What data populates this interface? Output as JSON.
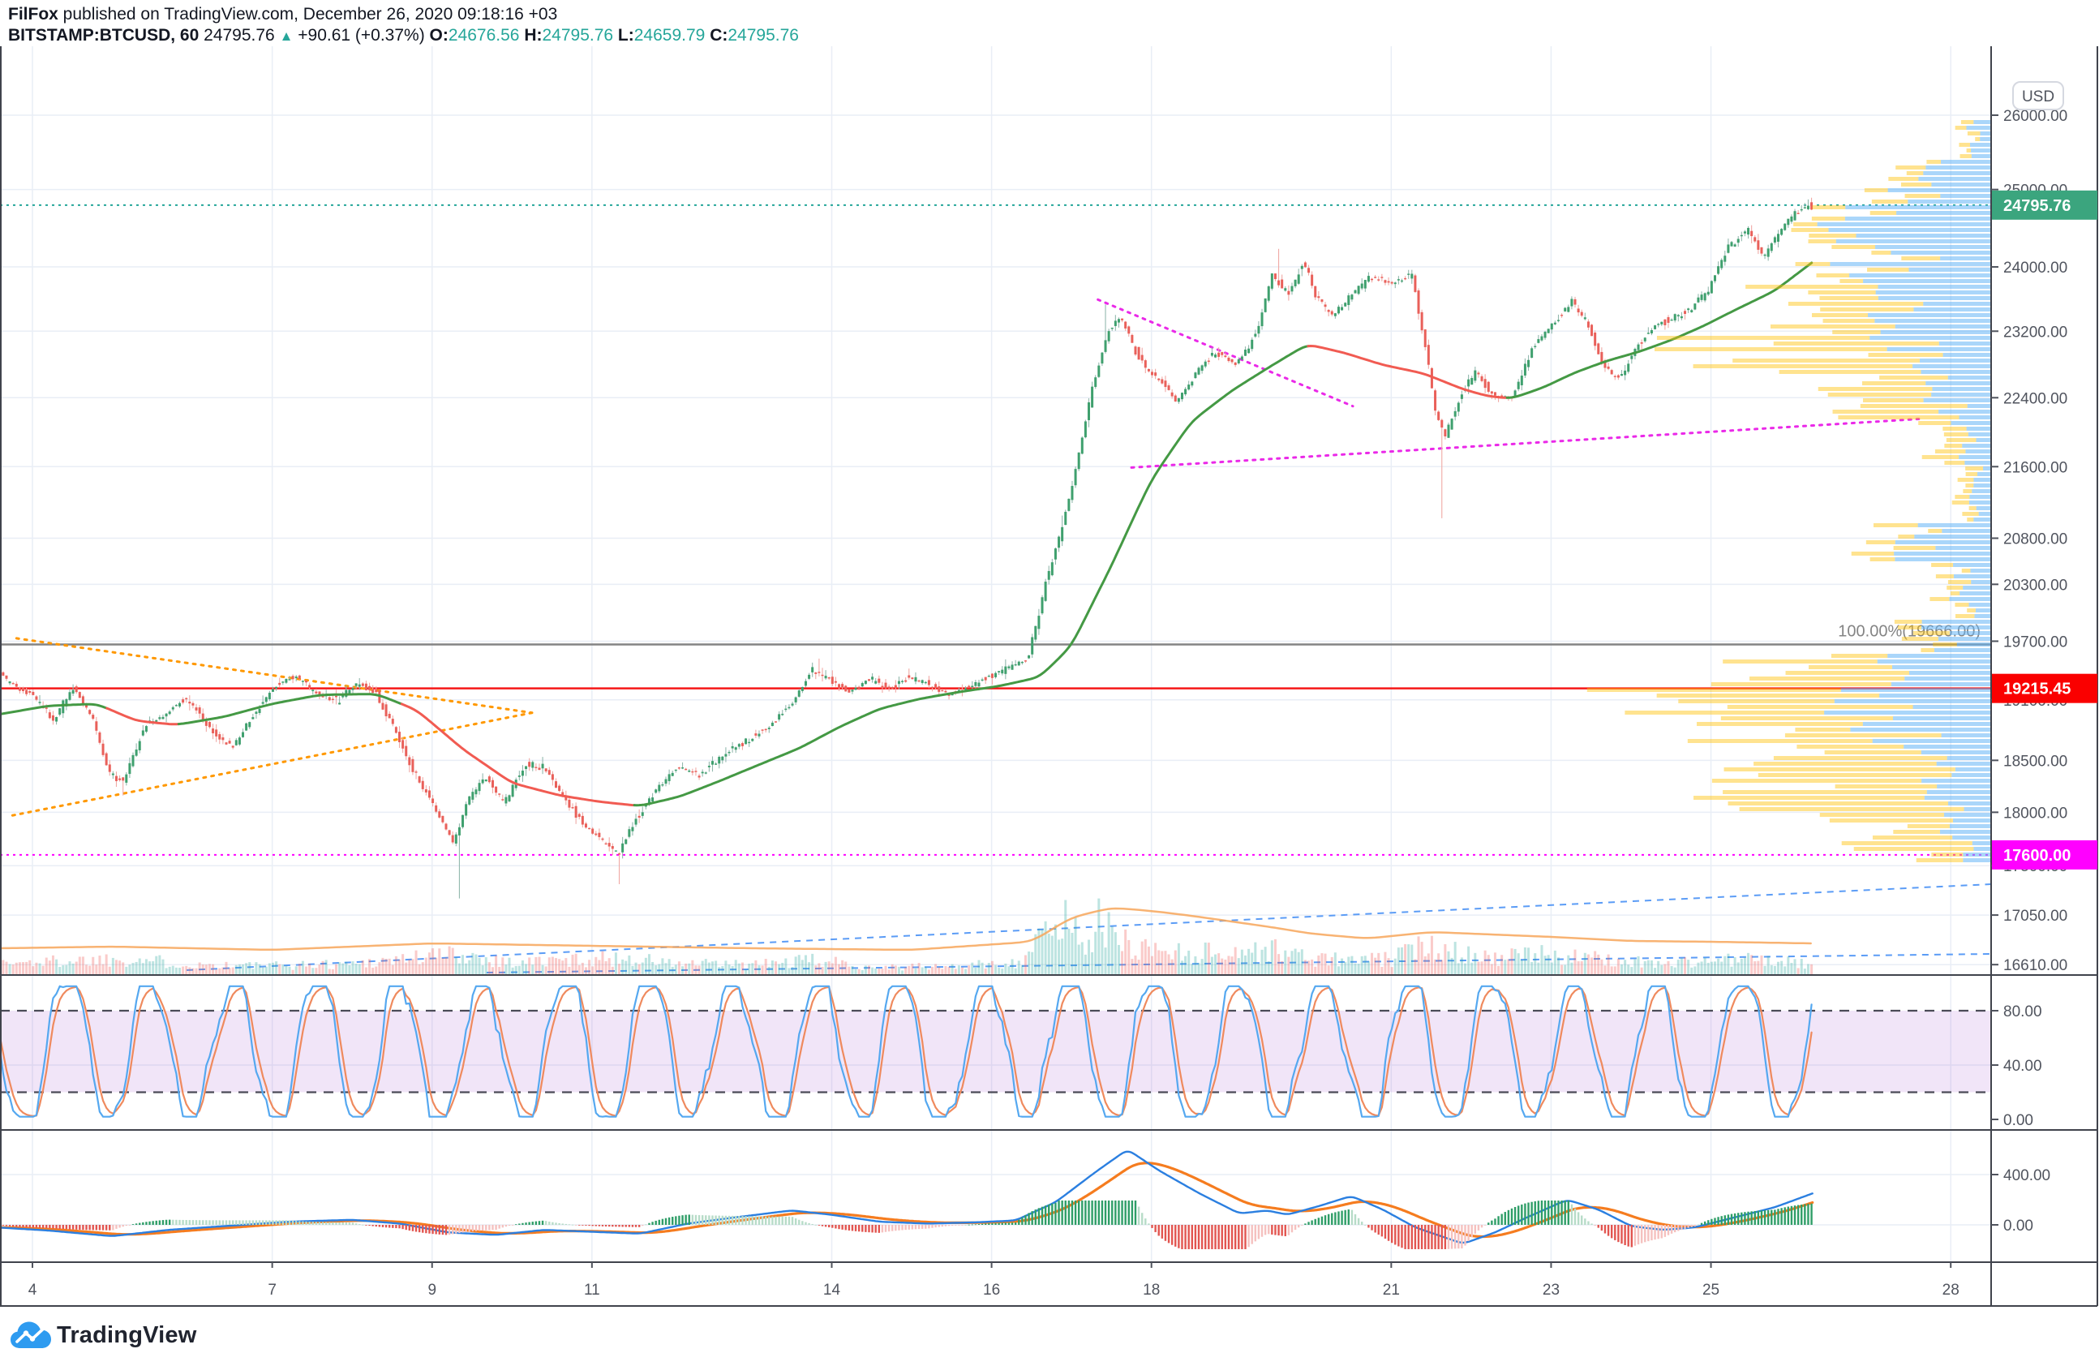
{
  "header": {
    "author": "FilFox",
    "published_text": " published on TradingView.com, December 26, 2020 09:18:16 +03",
    "symbol": "BITSTAMP:BTCUSD, 60",
    "last_price": "24795.76",
    "change": "+90.61 (+0.37%)",
    "ohlc": {
      "o_label": "O:",
      "o": "24676.56",
      "h_label": "H:",
      "h": "24795.76",
      "l_label": "L:",
      "l": "24659.79",
      "c_label": "C:",
      "c": "24795.76"
    }
  },
  "footer": {
    "logo_text": "TradingView"
  },
  "colors": {
    "teal": "#26a69a",
    "up": "#3fa06e",
    "down": "#e9605a",
    "wick_up": "#92b8ad",
    "wick_down": "#f0a9a5",
    "ma_green": "#449944",
    "ma_red": "#f15b52",
    "grid": "#e9eef6",
    "border": "#40434c",
    "axis_text": "#50545e",
    "level_red": "#f51818",
    "level_red_label": "#fa0000",
    "level_magenta": "#ff00ff",
    "fib_gray": "#848484",
    "last_label_bg": "#3ba57e",
    "orange_trend": "#ff9800",
    "magenta_trend": "#ea29e8",
    "blue_dash": "#5b9cf6",
    "stoch_k": "#55a8f0",
    "stoch_d": "#ef8a5e",
    "stoch_band": "rgba(154,74,208,0.14)",
    "stoch_dash": "#4b4b57",
    "macd_line": "#2b7fe0",
    "macd_signal": "#f57c1f",
    "hist_up_dark": "#2f9e68",
    "hist_up_light": "#b7dcc8",
    "hist_dn_dark": "#e25550",
    "hist_dn_light": "#f5c1bf",
    "vp_blue": "rgba(100,181,246,0.55)",
    "vp_yellow": "rgba(255,193,7,0.45)",
    "vol_up": "rgba(38,166,154,0.30)",
    "vol_dn": "rgba(239,83,80,0.30)",
    "vol_ma": "rgba(247,166,90,0.85)"
  },
  "axis": {
    "currency": "USD",
    "price_ticks": [
      26000,
      25000,
      24000,
      23200,
      22400,
      21600,
      20800,
      20300,
      19700,
      19100,
      18500,
      18000,
      17500,
      17050,
      16610
    ],
    "stoch_ticks": [
      80,
      40,
      0
    ],
    "macd_ticks": [
      400,
      0
    ],
    "time_labels": [
      {
        "t": "4",
        "d": 4
      },
      {
        "t": "7",
        "d": 7
      },
      {
        "t": "9",
        "d": 9
      },
      {
        "t": "11",
        "d": 11
      },
      {
        "t": "14",
        "d": 14
      },
      {
        "t": "16",
        "d": 16
      },
      {
        "t": "18",
        "d": 18
      },
      {
        "t": "21",
        "d": 21
      },
      {
        "t": "23",
        "d": 23
      },
      {
        "t": "25",
        "d": 25
      },
      {
        "t": "28",
        "d": 28
      }
    ]
  },
  "chart_data": {
    "type": "candlestick",
    "symbol": "BITSTAMP:BTCUSD",
    "interval_minutes": 60,
    "month": "December 2020",
    "ohlc_last": {
      "open": 24676.56,
      "high": 24795.76,
      "low": 24659.79,
      "close": 24795.76,
      "change": 90.61,
      "change_pct": 0.37
    },
    "ylim": [
      16400,
      26400
    ],
    "visible_days": [
      3.55,
      28.6
    ],
    "price_path": [
      [
        3.55,
        19420
      ],
      [
        3.8,
        19250
      ],
      [
        4.05,
        19150
      ],
      [
        4.3,
        18880
      ],
      [
        4.55,
        19230
      ],
      [
        4.8,
        18900
      ],
      [
        5.0,
        18380
      ],
      [
        5.18,
        18280
      ],
      [
        5.45,
        18850
      ],
      [
        5.7,
        18950
      ],
      [
        5.95,
        19120
      ],
      [
        6.25,
        18820
      ],
      [
        6.55,
        18620
      ],
      [
        6.85,
        19000
      ],
      [
        7.1,
        19260
      ],
      [
        7.35,
        19340
      ],
      [
        7.6,
        19150
      ],
      [
        7.85,
        19080
      ],
      [
        8.1,
        19260
      ],
      [
        8.35,
        19170
      ],
      [
        8.6,
        18750
      ],
      [
        8.85,
        18330
      ],
      [
        9.1,
        18020
      ],
      [
        9.3,
        17700
      ],
      [
        9.5,
        18120
      ],
      [
        9.7,
        18350
      ],
      [
        9.95,
        18080
      ],
      [
        10.2,
        18480
      ],
      [
        10.45,
        18420
      ],
      [
        10.7,
        18120
      ],
      [
        10.95,
        17880
      ],
      [
        11.2,
        17700
      ],
      [
        11.38,
        17620
      ],
      [
        11.6,
        17950
      ],
      [
        11.85,
        18220
      ],
      [
        12.1,
        18430
      ],
      [
        12.4,
        18350
      ],
      [
        12.7,
        18570
      ],
      [
        13.0,
        18700
      ],
      [
        13.3,
        18870
      ],
      [
        13.55,
        19080
      ],
      [
        13.8,
        19400
      ],
      [
        14.0,
        19330
      ],
      [
        14.25,
        19180
      ],
      [
        14.5,
        19300
      ],
      [
        14.75,
        19230
      ],
      [
        15.0,
        19320
      ],
      [
        15.25,
        19260
      ],
      [
        15.5,
        19150
      ],
      [
        15.75,
        19240
      ],
      [
        16.0,
        19330
      ],
      [
        16.25,
        19420
      ],
      [
        16.5,
        19530
      ],
      [
        16.7,
        20250
      ],
      [
        16.9,
        20850
      ],
      [
        17.1,
        21600
      ],
      [
        17.3,
        22500
      ],
      [
        17.5,
        23200
      ],
      [
        17.65,
        23380
      ],
      [
        17.8,
        23050
      ],
      [
        17.95,
        22750
      ],
      [
        18.15,
        22620
      ],
      [
        18.35,
        22350
      ],
      [
        18.6,
        22700
      ],
      [
        18.85,
        22950
      ],
      [
        19.1,
        22800
      ],
      [
        19.35,
        23150
      ],
      [
        19.55,
        23900
      ],
      [
        19.75,
        23650
      ],
      [
        19.95,
        24080
      ],
      [
        20.1,
        23600
      ],
      [
        20.3,
        23400
      ],
      [
        20.55,
        23650
      ],
      [
        20.8,
        23880
      ],
      [
        21.05,
        23780
      ],
      [
        21.3,
        23900
      ],
      [
        21.45,
        23100
      ],
      [
        21.6,
        22200
      ],
      [
        21.72,
        21950
      ],
      [
        21.9,
        22420
      ],
      [
        22.1,
        22700
      ],
      [
        22.3,
        22450
      ],
      [
        22.55,
        22400
      ],
      [
        22.8,
        22980
      ],
      [
        23.05,
        23280
      ],
      [
        23.3,
        23580
      ],
      [
        23.5,
        23280
      ],
      [
        23.7,
        22750
      ],
      [
        23.9,
        22620
      ],
      [
        24.1,
        23000
      ],
      [
        24.35,
        23280
      ],
      [
        24.6,
        23380
      ],
      [
        24.8,
        23480
      ],
      [
        25.0,
        23700
      ],
      [
        25.25,
        24250
      ],
      [
        25.5,
        24480
      ],
      [
        25.7,
        24120
      ],
      [
        25.9,
        24450
      ],
      [
        26.05,
        24650
      ],
      [
        26.27,
        24795
      ]
    ],
    "wick_events": [
      {
        "d": 5.15,
        "p": 18160,
        "s": -1
      },
      {
        "d": 9.33,
        "p": 17200,
        "s": -1
      },
      {
        "d": 11.35,
        "p": 17330,
        "s": -1
      },
      {
        "d": 13.85,
        "p": 19520,
        "s": 1
      },
      {
        "d": 16.88,
        "p": 21050,
        "s": 1
      },
      {
        "d": 17.42,
        "p": 23530,
        "s": 1
      },
      {
        "d": 19.6,
        "p": 24230,
        "s": 1
      },
      {
        "d": 21.62,
        "p": 21020,
        "s": -1
      },
      {
        "d": 26.2,
        "p": 24870,
        "s": 1
      }
    ],
    "ma_path": [
      [
        3.55,
        18950
      ],
      [
        4.2,
        19040
      ],
      [
        4.8,
        19060
      ],
      [
        5.3,
        18890
      ],
      [
        5.8,
        18850
      ],
      [
        6.4,
        18930
      ],
      [
        7.0,
        19060
      ],
      [
        7.6,
        19150
      ],
      [
        8.3,
        19160
      ],
      [
        8.8,
        19000
      ],
      [
        9.4,
        18600
      ],
      [
        10.0,
        18280
      ],
      [
        10.6,
        18160
      ],
      [
        11.1,
        18100
      ],
      [
        11.6,
        18060
      ],
      [
        12.1,
        18150
      ],
      [
        12.6,
        18300
      ],
      [
        13.1,
        18460
      ],
      [
        13.6,
        18620
      ],
      [
        14.1,
        18830
      ],
      [
        14.6,
        19010
      ],
      [
        15.1,
        19110
      ],
      [
        15.6,
        19180
      ],
      [
        16.1,
        19240
      ],
      [
        16.6,
        19330
      ],
      [
        17.0,
        19650
      ],
      [
        17.5,
        20500
      ],
      [
        18.0,
        21450
      ],
      [
        18.5,
        22120
      ],
      [
        19.0,
        22480
      ],
      [
        19.5,
        22780
      ],
      [
        19.95,
        23040
      ],
      [
        20.4,
        22940
      ],
      [
        20.9,
        22790
      ],
      [
        21.4,
        22690
      ],
      [
        21.9,
        22500
      ],
      [
        22.2,
        22420
      ],
      [
        22.5,
        22390
      ],
      [
        22.9,
        22520
      ],
      [
        23.3,
        22700
      ],
      [
        23.7,
        22840
      ],
      [
        24.1,
        22950
      ],
      [
        24.5,
        23090
      ],
      [
        24.9,
        23260
      ],
      [
        25.3,
        23460
      ],
      [
        25.8,
        23700
      ],
      [
        26.27,
        24060
      ]
    ],
    "ma_red_ranges": [
      [
        4.95,
        5.85
      ],
      [
        8.65,
        11.55
      ],
      [
        19.98,
        22.48
      ]
    ],
    "levels": [
      {
        "name": "last-price",
        "price": 24795.76,
        "label": "24795.76",
        "style": "dotted",
        "line": "#26a69a",
        "bg": "#3ba57e"
      },
      {
        "name": "alert-line",
        "price": 19215.45,
        "label": "19215.45",
        "style": "solid",
        "line": "#f51818",
        "bg": "#fa0000"
      },
      {
        "name": "support-line",
        "price": 17600.0,
        "label": "17600.00",
        "style": "dotted",
        "line": "#ff00ff",
        "bg": "#ff00ff"
      }
    ],
    "fib": {
      "price": 19666.0,
      "label": "100.00%(19666.00)"
    },
    "trendlines": [
      {
        "name": "orange-pennant-upper",
        "pts": [
          [
            3.8,
            19730
          ],
          [
            10.25,
            18970
          ]
        ],
        "color": "#ff9800"
      },
      {
        "name": "orange-pennant-lower",
        "pts": [
          [
            3.75,
            17970
          ],
          [
            10.25,
            18970
          ]
        ],
        "color": "#ff9800"
      },
      {
        "name": "magenta-wedge-upper",
        "pts": [
          [
            17.33,
            23590
          ],
          [
            20.52,
            22300
          ]
        ],
        "color": "#ea29e8"
      },
      {
        "name": "magenta-wedge-lower",
        "pts": [
          [
            17.75,
            21590
          ],
          [
            27.6,
            22150
          ]
        ],
        "color": "#ea29e8"
      }
    ],
    "blue_dashed_lines": [
      {
        "x1": 230,
        "y1": 1196,
        "x2": 2455,
        "y2": 1090
      },
      {
        "x1": 600,
        "y1": 1199,
        "x2": 2455,
        "y2": 1176
      }
    ],
    "volume_anchors": [
      [
        3.6,
        20
      ],
      [
        4.5,
        26
      ],
      [
        5.2,
        30
      ],
      [
        6,
        18
      ],
      [
        7,
        16
      ],
      [
        8,
        20
      ],
      [
        8.8,
        32
      ],
      [
        9.3,
        38
      ],
      [
        10,
        22
      ],
      [
        11,
        28
      ],
      [
        11.5,
        30
      ],
      [
        12,
        20
      ],
      [
        13,
        18
      ],
      [
        13.8,
        26
      ],
      [
        14.5,
        14
      ],
      [
        15.5,
        14
      ],
      [
        16.3,
        22
      ],
      [
        16.7,
        75
      ],
      [
        16.9,
        108
      ],
      [
        17.1,
        70
      ],
      [
        17.35,
        95
      ],
      [
        17.6,
        60
      ],
      [
        18,
        48
      ],
      [
        18.5,
        40
      ],
      [
        19,
        42
      ],
      [
        19.6,
        45
      ],
      [
        20,
        30
      ],
      [
        20.5,
        26
      ],
      [
        21,
        28
      ],
      [
        21.5,
        60
      ],
      [
        21.8,
        45
      ],
      [
        22.3,
        30
      ],
      [
        23,
        38
      ],
      [
        23.4,
        30
      ],
      [
        24,
        24
      ],
      [
        24.5,
        20
      ],
      [
        25,
        26
      ],
      [
        25.4,
        28
      ],
      [
        26,
        22
      ],
      [
        26.27,
        18
      ]
    ],
    "volume_ma": [
      [
        3.6,
        32
      ],
      [
        5,
        34
      ],
      [
        7,
        30
      ],
      [
        9,
        38
      ],
      [
        11,
        35
      ],
      [
        13,
        32
      ],
      [
        15,
        30
      ],
      [
        16.5,
        40
      ],
      [
        17,
        70
      ],
      [
        17.5,
        82
      ],
      [
        18,
        78
      ],
      [
        18.5,
        72
      ],
      [
        19,
        65
      ],
      [
        19.5,
        58
      ],
      [
        20,
        50
      ],
      [
        20.7,
        44
      ],
      [
        21.5,
        52
      ],
      [
        22,
        50
      ],
      [
        23,
        46
      ],
      [
        24,
        41
      ],
      [
        25,
        40
      ],
      [
        26.27,
        38
      ]
    ],
    "volume_profile_zones": [
      [
        145,
        195,
        45,
        18
      ],
      [
        195,
        245,
        130,
        45
      ],
      [
        245,
        300,
        230,
        75
      ],
      [
        300,
        345,
        200,
        65
      ],
      [
        345,
        410,
        170,
        230
      ],
      [
        410,
        470,
        150,
        300
      ],
      [
        470,
        520,
        90,
        150
      ],
      [
        520,
        575,
        45,
        60
      ],
      [
        575,
        645,
        28,
        22
      ],
      [
        645,
        700,
        120,
        60
      ],
      [
        700,
        762,
        60,
        35
      ],
      [
        762,
        800,
        95,
        50
      ],
      [
        800,
        845,
        185,
        240
      ],
      [
        845,
        880,
        210,
        430
      ],
      [
        880,
        925,
        175,
        260
      ],
      [
        925,
        975,
        130,
        340
      ],
      [
        975,
        1015,
        100,
        420
      ],
      [
        1015,
        1045,
        70,
        180
      ],
      [
        1045,
        1068,
        40,
        80
      ]
    ],
    "stochastic": {
      "period_days": 1.05,
      "upper": 80,
      "lower": 20,
      "min": 2,
      "max": 98
    },
    "macd_path": [
      [
        3.55,
        -20
      ],
      [
        4.2,
        -45
      ],
      [
        5.0,
        -90
      ],
      [
        5.7,
        -40
      ],
      [
        6.4,
        -10
      ],
      [
        7.2,
        25
      ],
      [
        8.0,
        40
      ],
      [
        8.6,
        10
      ],
      [
        9.2,
        -60
      ],
      [
        9.8,
        -80
      ],
      [
        10.4,
        -40
      ],
      [
        11.0,
        -55
      ],
      [
        11.6,
        -70
      ],
      [
        12.2,
        10
      ],
      [
        12.8,
        60
      ],
      [
        13.5,
        115
      ],
      [
        14.0,
        80
      ],
      [
        14.6,
        25
      ],
      [
        15.2,
        10
      ],
      [
        15.8,
        20
      ],
      [
        16.3,
        35
      ],
      [
        16.8,
        180
      ],
      [
        17.3,
        420
      ],
      [
        17.7,
        600
      ],
      [
        18.1,
        430
      ],
      [
        18.6,
        250
      ],
      [
        19.1,
        90
      ],
      [
        19.45,
        115
      ],
      [
        19.7,
        80
      ],
      [
        20.1,
        150
      ],
      [
        20.5,
        230
      ],
      [
        20.9,
        120
      ],
      [
        21.3,
        -20
      ],
      [
        21.9,
        -150
      ],
      [
        22.3,
        -60
      ],
      [
        22.7,
        60
      ],
      [
        23.2,
        200
      ],
      [
        23.6,
        120
      ],
      [
        24.0,
        -10
      ],
      [
        24.4,
        -40
      ],
      [
        24.8,
        -20
      ],
      [
        25.3,
        60
      ],
      [
        25.8,
        140
      ],
      [
        26.27,
        250
      ]
    ]
  }
}
